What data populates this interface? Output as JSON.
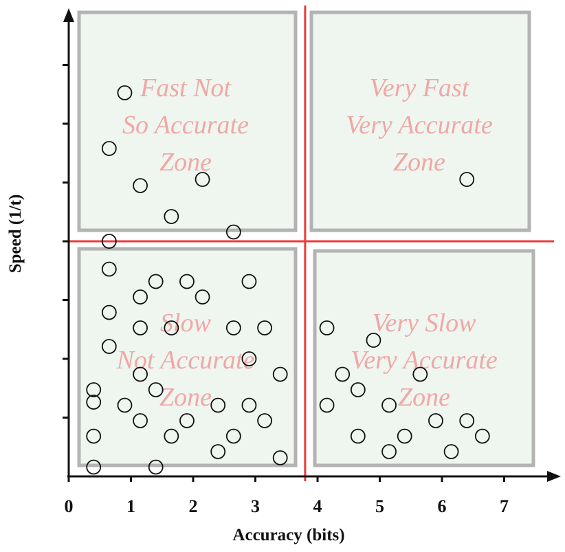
{
  "chart_data": {
    "type": "scatter",
    "xlabel": "Accuracy (bits)",
    "ylabel": "Speed (1/t)",
    "xlim": [
      0,
      7.7
    ],
    "ylim": [
      0,
      7.3
    ],
    "x_ticks": [
      "0",
      "1",
      "2",
      "3",
      "4",
      "5",
      "6",
      "7"
    ],
    "y_tick_count": 7,
    "grid": false,
    "divider": {
      "x": 3.8,
      "y": 3.8
    },
    "zones": [
      {
        "name": "top-left",
        "label_lines": [
          "Fast Not",
          "So Accurate",
          "Zone"
        ]
      },
      {
        "name": "top-right",
        "label_lines": [
          "Very Fast",
          "Very Accurate",
          "Zone"
        ]
      },
      {
        "name": "bottom-left",
        "label_lines": [
          "Slow",
          "Not Accurate",
          "Zone"
        ]
      },
      {
        "name": "bottom-right",
        "label_lines": [
          "Very Slow",
          "Very Accurate",
          "Zone"
        ]
      }
    ],
    "points": [
      [
        0.9,
        6.2
      ],
      [
        0.65,
        5.3
      ],
      [
        1.15,
        4.7
      ],
      [
        2.15,
        4.8
      ],
      [
        1.65,
        4.2
      ],
      [
        0.65,
        3.8
      ],
      [
        2.65,
        3.95
      ],
      [
        6.4,
        4.8
      ],
      [
        0.65,
        3.35
      ],
      [
        1.4,
        3.15
      ],
      [
        1.9,
        3.15
      ],
      [
        2.9,
        3.15
      ],
      [
        1.15,
        2.9
      ],
      [
        2.15,
        2.9
      ],
      [
        0.65,
        2.65
      ],
      [
        1.15,
        2.4
      ],
      [
        1.65,
        2.4
      ],
      [
        2.65,
        2.4
      ],
      [
        3.15,
        2.4
      ],
      [
        4.15,
        2.4
      ],
      [
        4.9,
        2.2
      ],
      [
        0.65,
        2.1
      ],
      [
        2.9,
        1.9
      ],
      [
        1.15,
        1.65
      ],
      [
        3.4,
        1.65
      ],
      [
        4.4,
        1.65
      ],
      [
        5.65,
        1.65
      ],
      [
        0.4,
        1.4
      ],
      [
        1.4,
        1.4
      ],
      [
        4.65,
        1.4
      ],
      [
        0.4,
        1.2
      ],
      [
        0.9,
        1.15
      ],
      [
        2.4,
        1.15
      ],
      [
        2.9,
        1.15
      ],
      [
        4.15,
        1.15
      ],
      [
        5.15,
        1.15
      ],
      [
        1.15,
        0.9
      ],
      [
        1.9,
        0.9
      ],
      [
        3.15,
        0.9
      ],
      [
        5.9,
        0.9
      ],
      [
        6.4,
        0.9
      ],
      [
        0.4,
        0.65
      ],
      [
        1.65,
        0.65
      ],
      [
        2.65,
        0.65
      ],
      [
        4.65,
        0.65
      ],
      [
        5.4,
        0.65
      ],
      [
        6.65,
        0.65
      ],
      [
        2.4,
        0.4
      ],
      [
        3.4,
        0.3
      ],
      [
        5.15,
        0.4
      ],
      [
        6.15,
        0.4
      ],
      [
        0.4,
        0.15
      ],
      [
        1.4,
        0.15
      ]
    ],
    "colors": {
      "zone_fill": "#eef6ef",
      "zone_border": "#b3b3b3",
      "divider": "#ee3a3a",
      "label": "#f29a9a",
      "axis": "#111111",
      "marker": "#111111"
    }
  }
}
